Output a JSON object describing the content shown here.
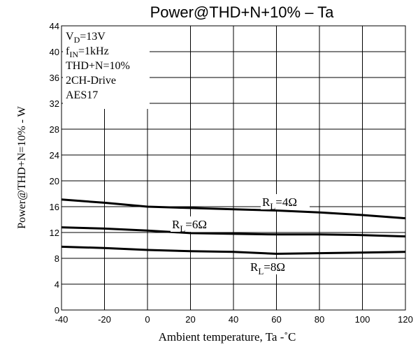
{
  "chart_data": {
    "type": "line",
    "title": "Power@THD+N+10%  –  Ta",
    "xlabel": "Ambient temperature, Ta  -˚C",
    "ylabel": "Power@THD+N=10% - W",
    "xlim": [
      -40,
      120
    ],
    "ylim": [
      0,
      44
    ],
    "xticks": [
      -40,
      -20,
      0,
      20,
      40,
      60,
      80,
      100,
      120
    ],
    "yticks": [
      0,
      4,
      8,
      12,
      16,
      20,
      24,
      28,
      32,
      36,
      40,
      44
    ],
    "grid": true,
    "conditions": [
      {
        "main": "V",
        "sub": "D",
        "rest": "=13V"
      },
      {
        "main": "f",
        "sub": "IN",
        "rest": "=1kHz"
      },
      {
        "main": "THD+N=10%",
        "sub": "",
        "rest": ""
      },
      {
        "main": "2CH-Drive",
        "sub": "",
        "rest": ""
      },
      {
        "main": "AES17",
        "sub": "",
        "rest": ""
      }
    ],
    "series": [
      {
        "label_main": "R",
        "label_sub": "L",
        "label_rest": "=4Ω",
        "x": [
          -40,
          -20,
          0,
          20,
          40,
          60,
          80,
          100,
          120
        ],
        "y": [
          17.1,
          16.6,
          16.0,
          15.8,
          15.6,
          15.4,
          15.1,
          14.7,
          14.2
        ]
      },
      {
        "label_main": "R",
        "label_sub": "L",
        "label_rest": "=6Ω",
        "x": [
          -40,
          -20,
          0,
          20,
          40,
          60,
          80,
          100,
          120
        ],
        "y": [
          12.8,
          12.6,
          12.3,
          11.9,
          11.8,
          11.7,
          11.7,
          11.6,
          11.4
        ]
      },
      {
        "label_main": "R",
        "label_sub": "L",
        "label_rest": "=8Ω",
        "x": [
          -40,
          -20,
          0,
          20,
          40,
          60,
          80,
          100,
          120
        ],
        "y": [
          9.8,
          9.6,
          9.3,
          9.1,
          9.0,
          8.7,
          8.8,
          8.9,
          9.0
        ]
      }
    ]
  }
}
